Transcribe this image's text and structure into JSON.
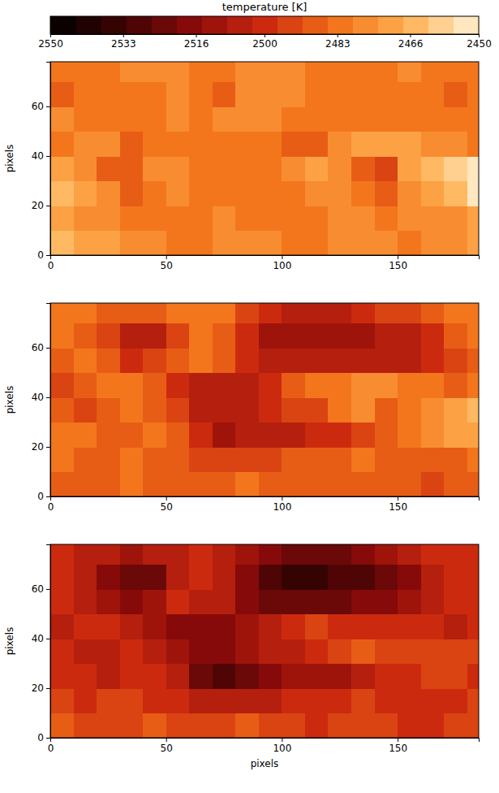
{
  "chart_data": {
    "type": "heatmap",
    "colorbar": {
      "label": "temperature [K]",
      "range": [
        2550,
        2450
      ],
      "ticks": [
        2550,
        2533,
        2516,
        2500,
        2483,
        2466,
        2450
      ]
    },
    "panels": [
      {
        "ylabel": "pixels",
        "xlim": [
          0,
          185
        ],
        "ylim": [
          0,
          78
        ],
        "xticks": [
          0,
          50,
          100,
          150
        ],
        "yticks": [
          0,
          20,
          40,
          60
        ],
        "x_bins": [
          0,
          10,
          20,
          30,
          40,
          50,
          60,
          70,
          80,
          90,
          100,
          110,
          120,
          130,
          140,
          150,
          160,
          170,
          180,
          185
        ],
        "y_bins": [
          0,
          10,
          20,
          30,
          40,
          50,
          60,
          70,
          78
        ],
        "values": [
          [
            2465,
            2468,
            2470,
            2475,
            2478,
            2480,
            2480,
            2478,
            2476,
            2478,
            2480,
            2482,
            2478,
            2476,
            2478,
            2480,
            2478,
            2476,
            2470
          ],
          [
            2470,
            2475,
            2478,
            2480,
            2482,
            2482,
            2480,
            2478,
            2480,
            2482,
            2482,
            2480,
            2478,
            2478,
            2480,
            2478,
            2476,
            2474,
            2472
          ],
          [
            2462,
            2470,
            2478,
            2488,
            2480,
            2478,
            2482,
            2484,
            2484,
            2482,
            2480,
            2478,
            2478,
            2482,
            2486,
            2476,
            2470,
            2462,
            2452
          ],
          [
            2472,
            2478,
            2490,
            2486,
            2478,
            2475,
            2480,
            2484,
            2484,
            2480,
            2476,
            2472,
            2474,
            2490,
            2494,
            2470,
            2462,
            2458,
            2455
          ],
          [
            2480,
            2476,
            2474,
            2488,
            2482,
            2480,
            2482,
            2484,
            2482,
            2480,
            2488,
            2486,
            2476,
            2470,
            2468,
            2470,
            2474,
            2478,
            2480
          ],
          [
            2478,
            2480,
            2482,
            2484,
            2482,
            2478,
            2480,
            2476,
            2474,
            2476,
            2480,
            2482,
            2484,
            2484,
            2482,
            2480,
            2480,
            2482,
            2480
          ],
          [
            2488,
            2484,
            2482,
            2484,
            2480,
            2478,
            2484,
            2488,
            2478,
            2474,
            2478,
            2482,
            2484,
            2484,
            2482,
            2480,
            2482,
            2490,
            2484
          ],
          [
            2480,
            2482,
            2480,
            2478,
            2476,
            2478,
            2480,
            2482,
            2478,
            2476,
            2478,
            2480,
            2482,
            2482,
            2480,
            2478,
            2480,
            2482,
            2480
          ]
        ]
      },
      {
        "ylabel": "pixels",
        "xlim": [
          0,
          185
        ],
        "ylim": [
          0,
          78
        ],
        "xticks": [
          0,
          50,
          100,
          150
        ],
        "yticks": [
          0,
          20,
          40,
          60
        ],
        "x_bins": [
          0,
          10,
          20,
          30,
          40,
          50,
          60,
          70,
          80,
          90,
          100,
          110,
          120,
          130,
          140,
          150,
          160,
          170,
          180,
          185
        ],
        "y_bins": [
          0,
          10,
          20,
          30,
          40,
          50,
          60,
          70,
          78
        ],
        "values": [
          [
            2488,
            2490,
            2488,
            2484,
            2486,
            2490,
            2488,
            2486,
            2484,
            2486,
            2488,
            2490,
            2488,
            2486,
            2488,
            2490,
            2492,
            2488,
            2486
          ],
          [
            2484,
            2488,
            2486,
            2484,
            2486,
            2490,
            2494,
            2496,
            2494,
            2492,
            2490,
            2488,
            2486,
            2484,
            2486,
            2488,
            2488,
            2486,
            2484
          ],
          [
            2480,
            2485,
            2490,
            2488,
            2484,
            2486,
            2500,
            2510,
            2508,
            2506,
            2504,
            2502,
            2498,
            2494,
            2488,
            2480,
            2476,
            2472,
            2470
          ],
          [
            2486,
            2492,
            2488,
            2484,
            2486,
            2494,
            2504,
            2508,
            2506,
            2500,
            2496,
            2492,
            2484,
            2478,
            2486,
            2480,
            2474,
            2468,
            2464
          ],
          [
            2496,
            2488,
            2484,
            2482,
            2490,
            2500,
            2506,
            2508,
            2504,
            2498,
            2490,
            2484,
            2480,
            2478,
            2476,
            2480,
            2484,
            2486,
            2482
          ],
          [
            2486,
            2484,
            2490,
            2498,
            2494,
            2486,
            2484,
            2490,
            2498,
            2506,
            2508,
            2508,
            2506,
            2504,
            2504,
            2506,
            2502,
            2492,
            2486
          ],
          [
            2484,
            2488,
            2496,
            2506,
            2508,
            2494,
            2482,
            2486,
            2500,
            2510,
            2512,
            2512,
            2510,
            2510,
            2508,
            2506,
            2500,
            2490,
            2484
          ],
          [
            2482,
            2484,
            2486,
            2490,
            2488,
            2484,
            2480,
            2484,
            2492,
            2500,
            2504,
            2506,
            2504,
            2500,
            2496,
            2492,
            2488,
            2484,
            2482
          ]
        ]
      },
      {
        "ylabel": "pixels",
        "xlabel": "pixels",
        "xlim": [
          0,
          185
        ],
        "ylim": [
          0,
          78
        ],
        "xticks": [
          0,
          50,
          100,
          150
        ],
        "yticks": [
          0,
          20,
          40,
          60
        ],
        "x_bins": [
          0,
          10,
          20,
          30,
          40,
          50,
          60,
          70,
          80,
          90,
          100,
          110,
          120,
          130,
          140,
          150,
          160,
          170,
          180,
          185
        ],
        "y_bins": [
          0,
          10,
          20,
          30,
          40,
          50,
          60,
          70,
          78
        ],
        "values": [
          [
            2490,
            2494,
            2496,
            2492,
            2490,
            2496,
            2494,
            2492,
            2490,
            2494,
            2496,
            2498,
            2496,
            2494,
            2496,
            2498,
            2500,
            2496,
            2494
          ],
          [
            2494,
            2498,
            2496,
            2494,
            2498,
            2502,
            2506,
            2508,
            2506,
            2504,
            2502,
            2500,
            2498,
            2496,
            2498,
            2500,
            2500,
            2498,
            2496
          ],
          [
            2498,
            2500,
            2504,
            2500,
            2498,
            2506,
            2526,
            2530,
            2522,
            2516,
            2514,
            2512,
            2510,
            2506,
            2502,
            2498,
            2494,
            2496,
            2500
          ],
          [
            2502,
            2508,
            2504,
            2500,
            2504,
            2512,
            2516,
            2518,
            2514,
            2508,
            2504,
            2500,
            2494,
            2490,
            2496,
            2494,
            2492,
            2494,
            2496
          ],
          [
            2508,
            2502,
            2500,
            2506,
            2512,
            2516,
            2518,
            2520,
            2514,
            2506,
            2498,
            2496,
            2500,
            2502,
            2500,
            2498,
            2500,
            2504,
            2500
          ],
          [
            2500,
            2504,
            2512,
            2516,
            2510,
            2500,
            2504,
            2508,
            2516,
            2522,
            2526,
            2526,
            2522,
            2518,
            2516,
            2514,
            2508,
            2502,
            2498
          ],
          [
            2502,
            2508,
            2516,
            2526,
            2524,
            2508,
            2498,
            2504,
            2520,
            2530,
            2534,
            2534,
            2530,
            2528,
            2524,
            2516,
            2508,
            2500,
            2498
          ],
          [
            2500,
            2504,
            2508,
            2512,
            2508,
            2504,
            2498,
            2504,
            2512,
            2520,
            2524,
            2526,
            2522,
            2516,
            2510,
            2506,
            2502,
            2500,
            2498
          ]
        ]
      }
    ]
  }
}
